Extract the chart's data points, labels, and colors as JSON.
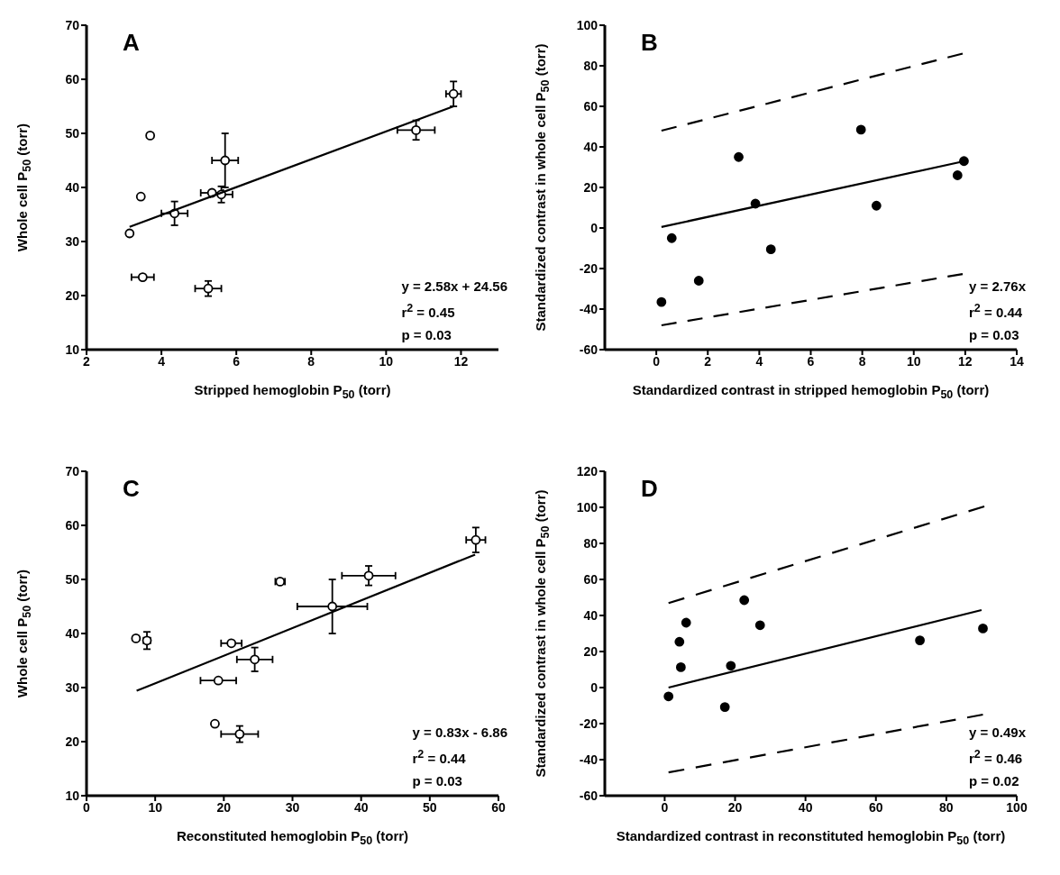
{
  "chart_data": [
    {
      "type": "scatter",
      "xlabel": "Stripped hemoglobin P$_{50}$ (torr)",
      "ylabel": "Whole cell P$_{50}$ (torr)",
      "annotations": [
        "A",
        "y = 2.58x + 24.56",
        "r$^{2}$ = 0.45",
        "p = 0.03"
      ],
      "xlim": [
        2,
        13
      ],
      "xticks": [
        2,
        4,
        6,
        8,
        10,
        12
      ],
      "ylim": [
        10,
        70
      ],
      "yticks": [
        10,
        20,
        30,
        40,
        50,
        60,
        70
      ],
      "series": [
        {
          "marker": "circle",
          "color": "#000000",
          "x": [
            3.15,
            3.5,
            3.45,
            3.7,
            4.35,
            5.25,
            5.35,
            5.6,
            5.7,
            10.8,
            11.8
          ],
          "values": [
            31.5,
            23.4,
            38.3,
            49.6,
            35.2,
            21.3,
            39,
            38.7,
            45,
            50.6,
            57.3
          ],
          "xerrors": [
            null,
            0.3,
            null,
            null,
            0.35,
            0.35,
            0.3,
            0.3,
            0.35,
            0.5,
            0.2
          ],
          "errors": [
            null,
            null,
            null,
            null,
            2.2,
            1.4,
            null,
            1.5,
            5,
            1.8,
            2.3
          ]
        },
        {
          "type": "line",
          "color": "#000000",
          "line_style": "solid",
          "x": [
            3.15,
            11.8
          ],
          "values": [
            32.7,
            55.0
          ]
        }
      ]
    },
    {
      "type": "scatter",
      "xlabel": "Standardized contrast in stripped hemoglobin P$_{50}$ (torr)",
      "ylabel": "Standardized contrast in whole cell P$_{50}$ (torr)",
      "annotations": [
        "B",
        "y = 2.76x",
        "r$^{2}$ = 0.44",
        "p = 0.03"
      ],
      "xlim": [
        -2,
        14
      ],
      "xticks": [
        0,
        2,
        4,
        6,
        8,
        10,
        12,
        14
      ],
      "ylim": [
        -60,
        100
      ],
      "yticks": [
        -60,
        -40,
        -20,
        0,
        20,
        40,
        60,
        80,
        100
      ],
      "series": [
        {
          "marker": "circle",
          "color": "#000000",
          "x": [
            0.2,
            0.6,
            1.65,
            3.2,
            3.85,
            4.45,
            7.95,
            8.55,
            11.7,
            11.95
          ],
          "values": [
            -36.5,
            -5,
            -26,
            35,
            12,
            -10.5,
            48.5,
            11,
            26,
            33
          ]
        },
        {
          "type": "line",
          "color": "#000000",
          "line_style": "solid",
          "x": [
            0.2,
            11.9
          ],
          "values": [
            0.5,
            32.8
          ]
        },
        {
          "type": "line",
          "color": "#000000",
          "line_style": "dashed",
          "x": [
            0.2,
            11.9
          ],
          "values": [
            48,
            86
          ]
        },
        {
          "type": "line",
          "color": "#000000",
          "line_style": "dashed",
          "x": [
            0.2,
            11.9
          ],
          "values": [
            -48,
            -22.7
          ]
        }
      ]
    },
    {
      "type": "scatter",
      "xlabel": "Reconstituted hemoglobin P$_{50}$ (torr)",
      "ylabel": "Whole cell P$_{50}$ (torr)",
      "annotations": [
        "C",
        "y = 0.83x - 6.86",
        "r$^{2}$ = 0.44",
        "p = 0.03"
      ],
      "xlim": [
        0,
        60
      ],
      "xticks": [
        0,
        10,
        20,
        30,
        40,
        50,
        60
      ],
      "ylim": [
        10,
        70
      ],
      "yticks": [
        10,
        20,
        30,
        40,
        50,
        60,
        70
      ],
      "series": [
        {
          "marker": "circle",
          "color": "#000000",
          "x": [
            7.2,
            8.8,
            19.2,
            18.7,
            21.1,
            22.3,
            24.5,
            28.2,
            35.8,
            41.1,
            56.7
          ],
          "values": [
            39.1,
            38.7,
            31.3,
            23.3,
            38.2,
            21.4,
            35.2,
            49.6,
            45,
            50.7,
            57.3
          ],
          "xerrors": [
            null,
            0.5,
            2.6,
            null,
            1.5,
            2.7,
            2.6,
            0.7,
            5.1,
            3.9,
            1.4
          ],
          "errors": [
            null,
            1.6,
            null,
            null,
            null,
            1.5,
            2.2,
            null,
            5,
            1.8,
            2.3
          ]
        },
        {
          "type": "line",
          "color": "#000000",
          "line_style": "solid",
          "x": [
            7.3,
            56.6
          ],
          "values": [
            29.4,
            54.6
          ]
        }
      ]
    },
    {
      "type": "scatter",
      "xlabel": "Standardized contrast in reconstituted hemoglobin P$_{50}$ (torr)",
      "ylabel": "Standardized contrast in whole cell P$_{50}$ (torr)",
      "annotations": [
        "D",
        "y = 0.49x",
        "r$^{2}$ = 0.46",
        "p = 0.02"
      ],
      "xlim": [
        -17,
        100
      ],
      "xticks": [
        0,
        20,
        40,
        60,
        80,
        100
      ],
      "ylim": [
        -60,
        120
      ],
      "yticks": [
        -60,
        -40,
        -20,
        0,
        20,
        40,
        60,
        80,
        100,
        120
      ],
      "series": [
        {
          "marker": "circle",
          "color": "#000000",
          "x": [
            1.1,
            4.2,
            4.6,
            6.1,
            17.1,
            18.8,
            22.6,
            27.1,
            72.5,
            90.4
          ],
          "values": [
            -4.9,
            25.4,
            11.3,
            36,
            -10.8,
            12.1,
            48.5,
            34.6,
            26.2,
            32.8
          ]
        },
        {
          "type": "line",
          "color": "#000000",
          "line_style": "solid",
          "x": [
            1.1,
            90
          ],
          "values": [
            0,
            43
          ]
        },
        {
          "type": "line",
          "color": "#000000",
          "line_style": "dashed",
          "x": [
            1.1,
            90.8
          ],
          "values": [
            46.9,
            100.5
          ]
        },
        {
          "type": "line",
          "color": "#000000",
          "line_style": "dashed",
          "x": [
            1.1,
            90.4
          ],
          "values": [
            -47.1,
            -15
          ]
        }
      ]
    }
  ]
}
